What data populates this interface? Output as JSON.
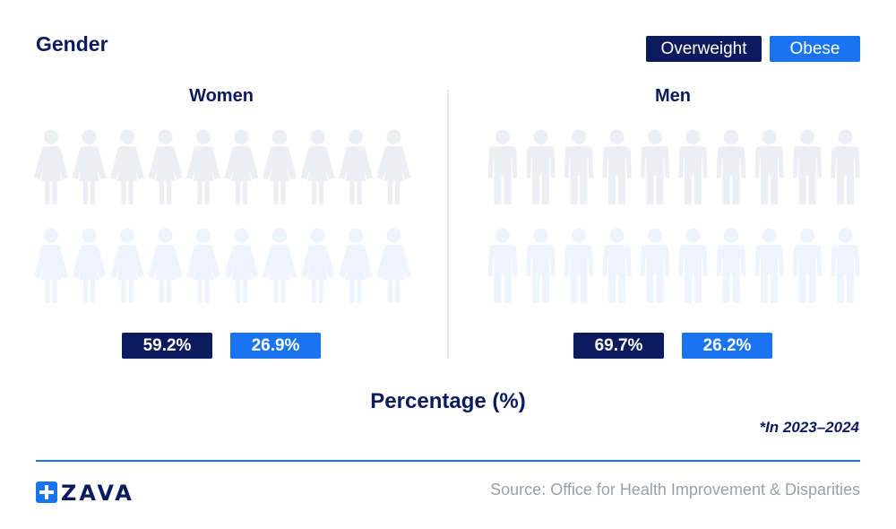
{
  "title": "Gender",
  "legend": [
    {
      "label": "Overweight",
      "color": "#0c1a5e"
    },
    {
      "label": "Obese",
      "color": "#1a73f0"
    }
  ],
  "colors": {
    "overweight": "#0c1a5e",
    "obese": "#1a73f0",
    "overweight_empty": "#eceef4",
    "obese_empty": "#eef4fd"
  },
  "axis_label": "Percentage (%)",
  "note": "*In 2023–2024",
  "source": "Source: Office for Health Improvement & Disparities",
  "logo": {
    "text": "ZAVA",
    "icon": "plus-square-icon"
  },
  "chart_data": {
    "type": "bar",
    "categories": [
      "Women",
      "Men"
    ],
    "series": [
      {
        "name": "Overweight",
        "values": [
          59.2,
          69.7
        ]
      },
      {
        "name": "Obese",
        "values": [
          26.9,
          26.2
        ]
      }
    ],
    "value_labels": {
      "Overweight": [
        "59.2%",
        "69.7%"
      ],
      "Obese": [
        "26.9%",
        "26.2%"
      ]
    },
    "icons_per_row": 10,
    "icon_names": {
      "Women": "woman-icon",
      "Men": "man-icon"
    }
  }
}
